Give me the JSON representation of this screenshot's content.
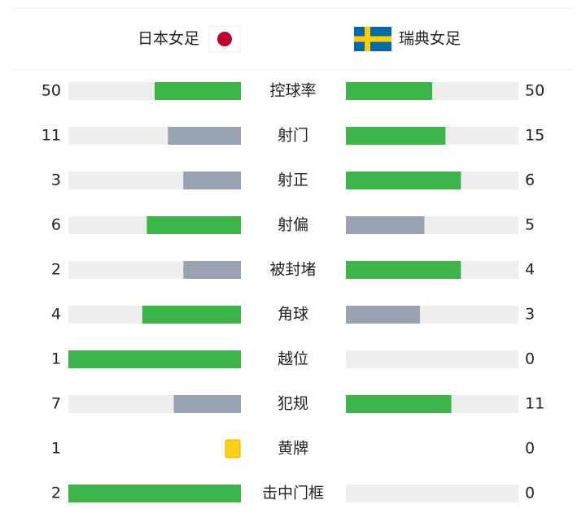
{
  "header": {
    "home": "日本女足",
    "away": "瑞典女足"
  },
  "stats": [
    {
      "label": "控球率",
      "home": 50,
      "away": 50
    },
    {
      "label": "射门",
      "home": 11,
      "away": 15
    },
    {
      "label": "射正",
      "home": 3,
      "away": 6
    },
    {
      "label": "射偏",
      "home": 6,
      "away": 5
    },
    {
      "label": "被封堵",
      "home": 2,
      "away": 4
    },
    {
      "label": "角球",
      "home": 4,
      "away": 3
    },
    {
      "label": "越位",
      "home": 1,
      "away": 0
    },
    {
      "label": "犯规",
      "home": 7,
      "away": 11
    },
    {
      "label": "黄牌",
      "home": 1,
      "away": 0,
      "style": "card"
    },
    {
      "label": "击中门框",
      "home": 2,
      "away": 0
    }
  ]
}
